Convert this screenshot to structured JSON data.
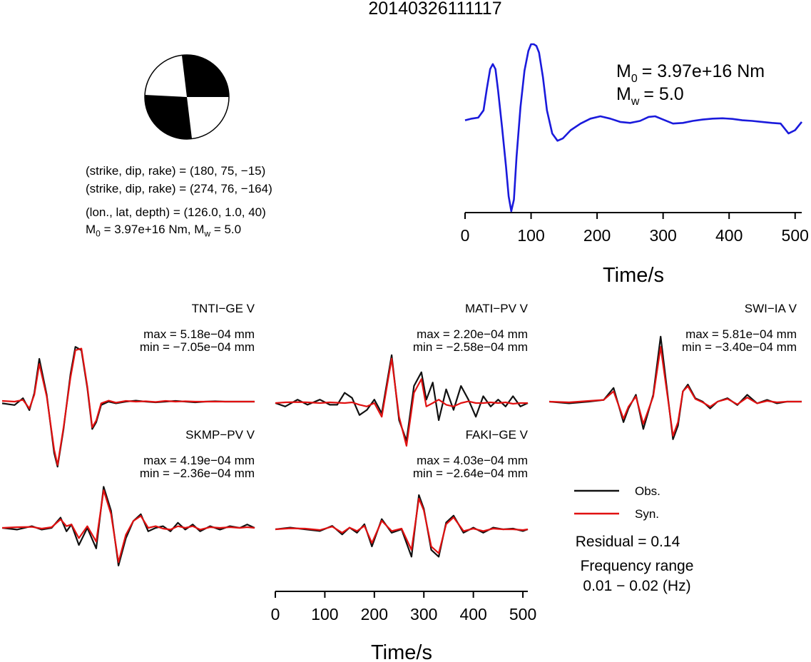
{
  "title": "20140326111117",
  "info": {
    "line1": "(strike, dip, rake) = (180, 75, −15)",
    "line2": "(strike, dip, rake) = (274, 76, −164)",
    "line3": "(lon., lat, depth) = (126.0, 1.0, 40)",
    "line4_m0": "= 3.97e+16 Nm, M",
    "line4_mw": "= 5.0",
    "M": "M",
    "sub0": "0",
    "subw": "w"
  },
  "stf": {
    "m0_value": "= 3.97e+16 Nm",
    "mw_value": "= 5.0",
    "M": "M",
    "sub0": "0",
    "subw": "w"
  },
  "legend": {
    "obs": "Obs.",
    "syn": "Syn.",
    "residual": "Residual = 0.14",
    "freq_label": "Frequency range",
    "freq_value": "0.01 − 0.02 (Hz)"
  },
  "colors": {
    "stf": "#1a1adc",
    "obs": "#111111",
    "syn": "#e01010",
    "beachball": "#000000"
  },
  "chart_data": [
    {
      "type": "line",
      "name": "source-time-function",
      "xlabel": "Time/s",
      "ylabel": "",
      "xlim": [
        0,
        510
      ],
      "x_ticks": [
        0,
        100,
        200,
        300,
        400,
        500
      ],
      "x": [
        0,
        10,
        20,
        28,
        33,
        38,
        42,
        46,
        50,
        56,
        62,
        66,
        70,
        74,
        78,
        84,
        90,
        96,
        100,
        104,
        108,
        112,
        118,
        124,
        132,
        140,
        148,
        160,
        175,
        190,
        205,
        220,
        235,
        250,
        265,
        278,
        288,
        300,
        315,
        330,
        345,
        360,
        375,
        390,
        405,
        420,
        435,
        450,
        465,
        478,
        490,
        500,
        510
      ],
      "y": [
        0.0,
        0.05,
        0.08,
        0.3,
        0.95,
        1.55,
        1.7,
        1.55,
        0.9,
        -0.2,
        -1.4,
        -2.3,
        -2.75,
        -2.4,
        -1.1,
        0.4,
        1.5,
        2.1,
        2.3,
        2.3,
        2.25,
        2.05,
        1.3,
        0.3,
        -0.4,
        -0.62,
        -0.55,
        -0.3,
        -0.1,
        0.05,
        0.12,
        0.05,
        -0.05,
        -0.08,
        -0.02,
        0.1,
        0.12,
        0.02,
        -0.1,
        -0.08,
        -0.02,
        0.02,
        0.05,
        0.06,
        0.04,
        0.0,
        -0.02,
        -0.05,
        -0.08,
        -0.1,
        -0.4,
        -0.3,
        -0.05
      ]
    },
    {
      "type": "line",
      "name": "TNTI",
      "title": "TNTI−GE V",
      "max_label": "max = 5.18e−04 mm",
      "min_label": "min = −7.05e−04 mm",
      "xlim": [
        0,
        510
      ],
      "series": [
        {
          "name": "Obs.",
          "x": [
            0,
            25,
            42,
            55,
            65,
            75,
            90,
            105,
            112,
            124,
            138,
            148,
            160,
            172,
            182,
            190,
            200,
            215,
            230,
            250,
            270,
            290,
            310,
            330,
            350,
            370,
            390,
            410,
            430,
            450,
            470,
            490,
            510
          ],
          "y": [
            -0.05,
            -0.1,
            0.1,
            -0.25,
            0.25,
            1.25,
            0.2,
            -1.5,
            -1.9,
            -0.8,
            0.8,
            1.6,
            1.5,
            0.4,
            -0.8,
            -0.6,
            -0.1,
            0.0,
            -0.05,
            0.0,
            0.03,
            0.0,
            -0.02,
            0.0,
            0.02,
            0.0,
            -0.02,
            0.0,
            0.01,
            0.0,
            0.0,
            0.0,
            0.0
          ]
        },
        {
          "name": "Syn.",
          "x": [
            0,
            25,
            42,
            55,
            65,
            75,
            90,
            105,
            112,
            124,
            138,
            148,
            160,
            172,
            182,
            190,
            200,
            215,
            230,
            250,
            270,
            290,
            310,
            330,
            350,
            370,
            390,
            410,
            430,
            450,
            470,
            490,
            510
          ],
          "y": [
            0.02,
            0.0,
            0.05,
            -0.2,
            0.2,
            1.1,
            0.15,
            -1.4,
            -1.85,
            -0.75,
            0.7,
            1.5,
            1.55,
            0.45,
            -0.75,
            -0.55,
            -0.05,
            0.03,
            -0.03,
            0.02,
            0.0,
            0.01,
            -0.01,
            0.02,
            0.0,
            0.01,
            0.0,
            0.0,
            0.0,
            0.0,
            0.0,
            0.0,
            0.0
          ]
        }
      ]
    },
    {
      "type": "line",
      "name": "MATI",
      "title": "MATI−PV V",
      "max_label": "max = 2.20e−04 mm",
      "min_label": "min = −2.58e−04 mm",
      "xlim": [
        0,
        510
      ],
      "series": [
        {
          "name": "Obs.",
          "x": [
            0,
            20,
            45,
            65,
            90,
            110,
            125,
            140,
            155,
            170,
            185,
            200,
            215,
            235,
            250,
            265,
            280,
            295,
            305,
            318,
            330,
            345,
            360,
            375,
            390,
            405,
            420,
            435,
            450,
            465,
            480,
            495,
            510
          ],
          "y": [
            0.0,
            -0.1,
            0.1,
            -0.05,
            0.1,
            -0.05,
            -0.05,
            0.3,
            0.15,
            -0.35,
            -0.2,
            0.1,
            -0.3,
            1.4,
            -0.5,
            -1.1,
            0.5,
            0.9,
            0.1,
            0.6,
            -0.5,
            0.4,
            -0.2,
            0.5,
            0.1,
            -0.4,
            0.2,
            -0.1,
            0.1,
            -0.1,
            0.2,
            -0.1,
            0.0
          ]
        },
        {
          "name": "Syn.",
          "x": [
            0,
            20,
            45,
            65,
            90,
            110,
            125,
            140,
            155,
            170,
            185,
            200,
            215,
            235,
            250,
            265,
            280,
            295,
            305,
            318,
            330,
            345,
            360,
            375,
            390,
            405,
            420,
            435,
            450,
            465,
            480,
            495,
            510
          ],
          "y": [
            0.0,
            0.02,
            0.03,
            0.02,
            0.0,
            0.02,
            0.01,
            0.0,
            0.02,
            -0.05,
            -0.1,
            0.0,
            -0.4,
            1.3,
            -0.4,
            -1.25,
            0.3,
            0.7,
            -0.1,
            0.0,
            0.1,
            -0.05,
            -0.1,
            0.0,
            0.05,
            0.0,
            0.0,
            0.02,
            0.0,
            0.02,
            -0.02,
            0.0,
            0.0
          ]
        }
      ]
    },
    {
      "type": "line",
      "name": "SWI",
      "title": "SWI−IA V",
      "max_label": "max = 5.81e−04 mm",
      "min_label": "min = −3.40e−04 mm",
      "xlim": [
        0,
        510
      ],
      "series": [
        {
          "name": "Obs.",
          "x": [
            0,
            40,
            80,
            110,
            130,
            150,
            160,
            175,
            190,
            210,
            225,
            240,
            250,
            260,
            270,
            280,
            295,
            310,
            325,
            340,
            360,
            380,
            400,
            420,
            440,
            460,
            480,
            500,
            510
          ],
          "y": [
            0.0,
            -0.05,
            0.0,
            0.05,
            0.4,
            -0.6,
            -0.2,
            0.2,
            -0.8,
            0.2,
            1.9,
            0.1,
            -1.1,
            -0.7,
            0.3,
            0.5,
            0.1,
            0.0,
            -0.2,
            0.0,
            0.1,
            -0.1,
            0.2,
            -0.05,
            0.05,
            -0.05,
            0.0,
            0.0,
            0.0
          ]
        },
        {
          "name": "Syn.",
          "x": [
            0,
            40,
            80,
            110,
            130,
            150,
            160,
            175,
            190,
            210,
            225,
            240,
            250,
            260,
            270,
            280,
            295,
            310,
            325,
            340,
            360,
            380,
            400,
            420,
            440,
            460,
            480,
            500,
            510
          ],
          "y": [
            0.0,
            -0.02,
            0.02,
            0.05,
            0.3,
            -0.5,
            -0.15,
            0.15,
            -0.65,
            0.15,
            1.6,
            0.05,
            -1.0,
            -0.6,
            0.3,
            0.45,
            0.08,
            -0.02,
            -0.15,
            0.0,
            0.08,
            -0.08,
            0.12,
            -0.05,
            0.02,
            -0.02,
            0.0,
            0.0,
            0.0
          ]
        }
      ]
    },
    {
      "type": "line",
      "name": "SKMP",
      "title": "SKMP−PV V",
      "max_label": "max = 4.19e−04 mm",
      "min_label": "min = −2.36e−04 mm",
      "xlim": [
        0,
        510
      ],
      "series": [
        {
          "name": "Obs.",
          "x": [
            0,
            30,
            60,
            80,
            100,
            118,
            130,
            140,
            155,
            172,
            190,
            205,
            220,
            235,
            250,
            265,
            280,
            295,
            310,
            325,
            340,
            355,
            370,
            385,
            400,
            420,
            440,
            460,
            480,
            495,
            510
          ],
          "y": [
            0.0,
            -0.05,
            0.05,
            -0.05,
            0.0,
            0.3,
            -0.1,
            0.1,
            -0.5,
            0.0,
            -0.6,
            1.2,
            0.5,
            -1.1,
            -0.3,
            0.2,
            0.4,
            -0.1,
            0.0,
            0.05,
            -0.1,
            0.15,
            -0.05,
            0.1,
            -0.1,
            0.05,
            -0.05,
            0.05,
            0.0,
            0.1,
            0.0
          ]
        },
        {
          "name": "Syn.",
          "x": [
            0,
            30,
            60,
            80,
            100,
            118,
            130,
            140,
            155,
            172,
            190,
            205,
            220,
            235,
            250,
            265,
            280,
            295,
            310,
            325,
            340,
            355,
            370,
            385,
            400,
            420,
            440,
            460,
            480,
            495,
            510
          ],
          "y": [
            0.0,
            0.02,
            0.03,
            -0.02,
            0.02,
            0.25,
            0.05,
            0.1,
            -0.3,
            0.05,
            -0.4,
            1.1,
            0.4,
            -1.0,
            -0.2,
            0.2,
            0.35,
            0.0,
            0.05,
            -0.02,
            -0.05,
            0.05,
            0.0,
            0.05,
            -0.05,
            0.02,
            0.0,
            0.02,
            0.0,
            0.02,
            0.0
          ]
        }
      ]
    },
    {
      "type": "line",
      "name": "FAKI",
      "title": "FAKI−GE V",
      "max_label": "max = 4.03e−04 mm",
      "min_label": "min = −2.64e−04 mm",
      "xlim": [
        0,
        510
      ],
      "xlabel": "Time/s",
      "x_ticks": [
        0,
        100,
        200,
        300,
        400,
        500
      ],
      "series": [
        {
          "name": "Obs.",
          "x": [
            0,
            30,
            60,
            90,
            115,
            135,
            150,
            165,
            180,
            195,
            215,
            235,
            255,
            275,
            290,
            300,
            315,
            330,
            345,
            360,
            380,
            400,
            420,
            440,
            460,
            480,
            500,
            510
          ],
          "y": [
            0.0,
            0.05,
            0.0,
            -0.05,
            0.1,
            -0.15,
            0.05,
            -0.1,
            0.15,
            -0.5,
            0.3,
            -0.1,
            0.0,
            -0.8,
            1.0,
            0.6,
            -0.6,
            -0.8,
            0.2,
            0.4,
            -0.1,
            0.05,
            -0.1,
            0.05,
            0.0,
            0.02,
            -0.05,
            0.0
          ]
        },
        {
          "name": "Syn.",
          "x": [
            0,
            30,
            60,
            90,
            115,
            135,
            150,
            165,
            180,
            195,
            215,
            235,
            255,
            275,
            290,
            300,
            315,
            330,
            345,
            360,
            380,
            400,
            420,
            440,
            460,
            480,
            500,
            510
          ],
          "y": [
            0.0,
            0.03,
            0.02,
            -0.02,
            0.08,
            -0.1,
            0.05,
            -0.05,
            0.1,
            -0.4,
            0.25,
            -0.05,
            0.02,
            -0.6,
            0.9,
            0.55,
            -0.5,
            -0.7,
            0.15,
            0.35,
            -0.05,
            0.02,
            -0.05,
            0.02,
            0.0,
            0.0,
            -0.02,
            0.0
          ]
        }
      ]
    }
  ]
}
